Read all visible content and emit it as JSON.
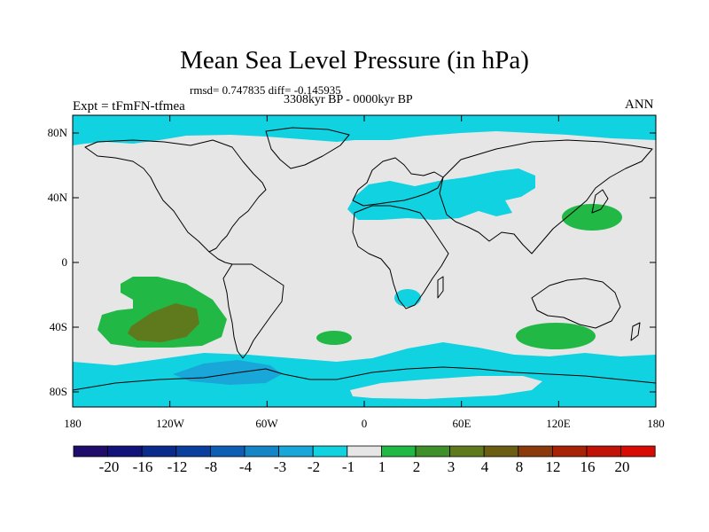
{
  "figure": {
    "title": "Mean Sea Level Pressure (in hPa)",
    "stats": "rmsd= 0.747835 diff= -0.145935",
    "period": "3308kyr BP - 0000kyr BP",
    "experiment": "Expt = tFmFN-tfmea",
    "season": "ANN"
  },
  "axes": {
    "lat_labels": [
      "80N",
      "40N",
      "0",
      "40S",
      "80S"
    ],
    "lon_labels": [
      "180",
      "120W",
      "60W",
      "0",
      "60E",
      "120E",
      "180"
    ]
  },
  "colorbar": {
    "labels": [
      "-20",
      "-16",
      "-12",
      "-8",
      "-4",
      "-3",
      "-2",
      "-1",
      "1",
      "2",
      "3",
      "4",
      "8",
      "12",
      "16",
      "20"
    ],
    "colors": [
      "#1f0c6b",
      "#12127a",
      "#0a2a8c",
      "#0a3fa0",
      "#0f5db4",
      "#1585c6",
      "#19a6d8",
      "#11d2e0",
      "#e6e6e6",
      "#22b845",
      "#3f8f2a",
      "#5f7a1d",
      "#6b5e12",
      "#8a3a0c",
      "#a82208",
      "#c01206",
      "#d80a04"
    ]
  },
  "colors": {
    "background": "#e6e6e6",
    "neg_weak": "#11d2e0",
    "neg_mod": "#19a6d8",
    "pos_weak": "#22b845",
    "pos_strong": "#5f7a1d"
  }
}
